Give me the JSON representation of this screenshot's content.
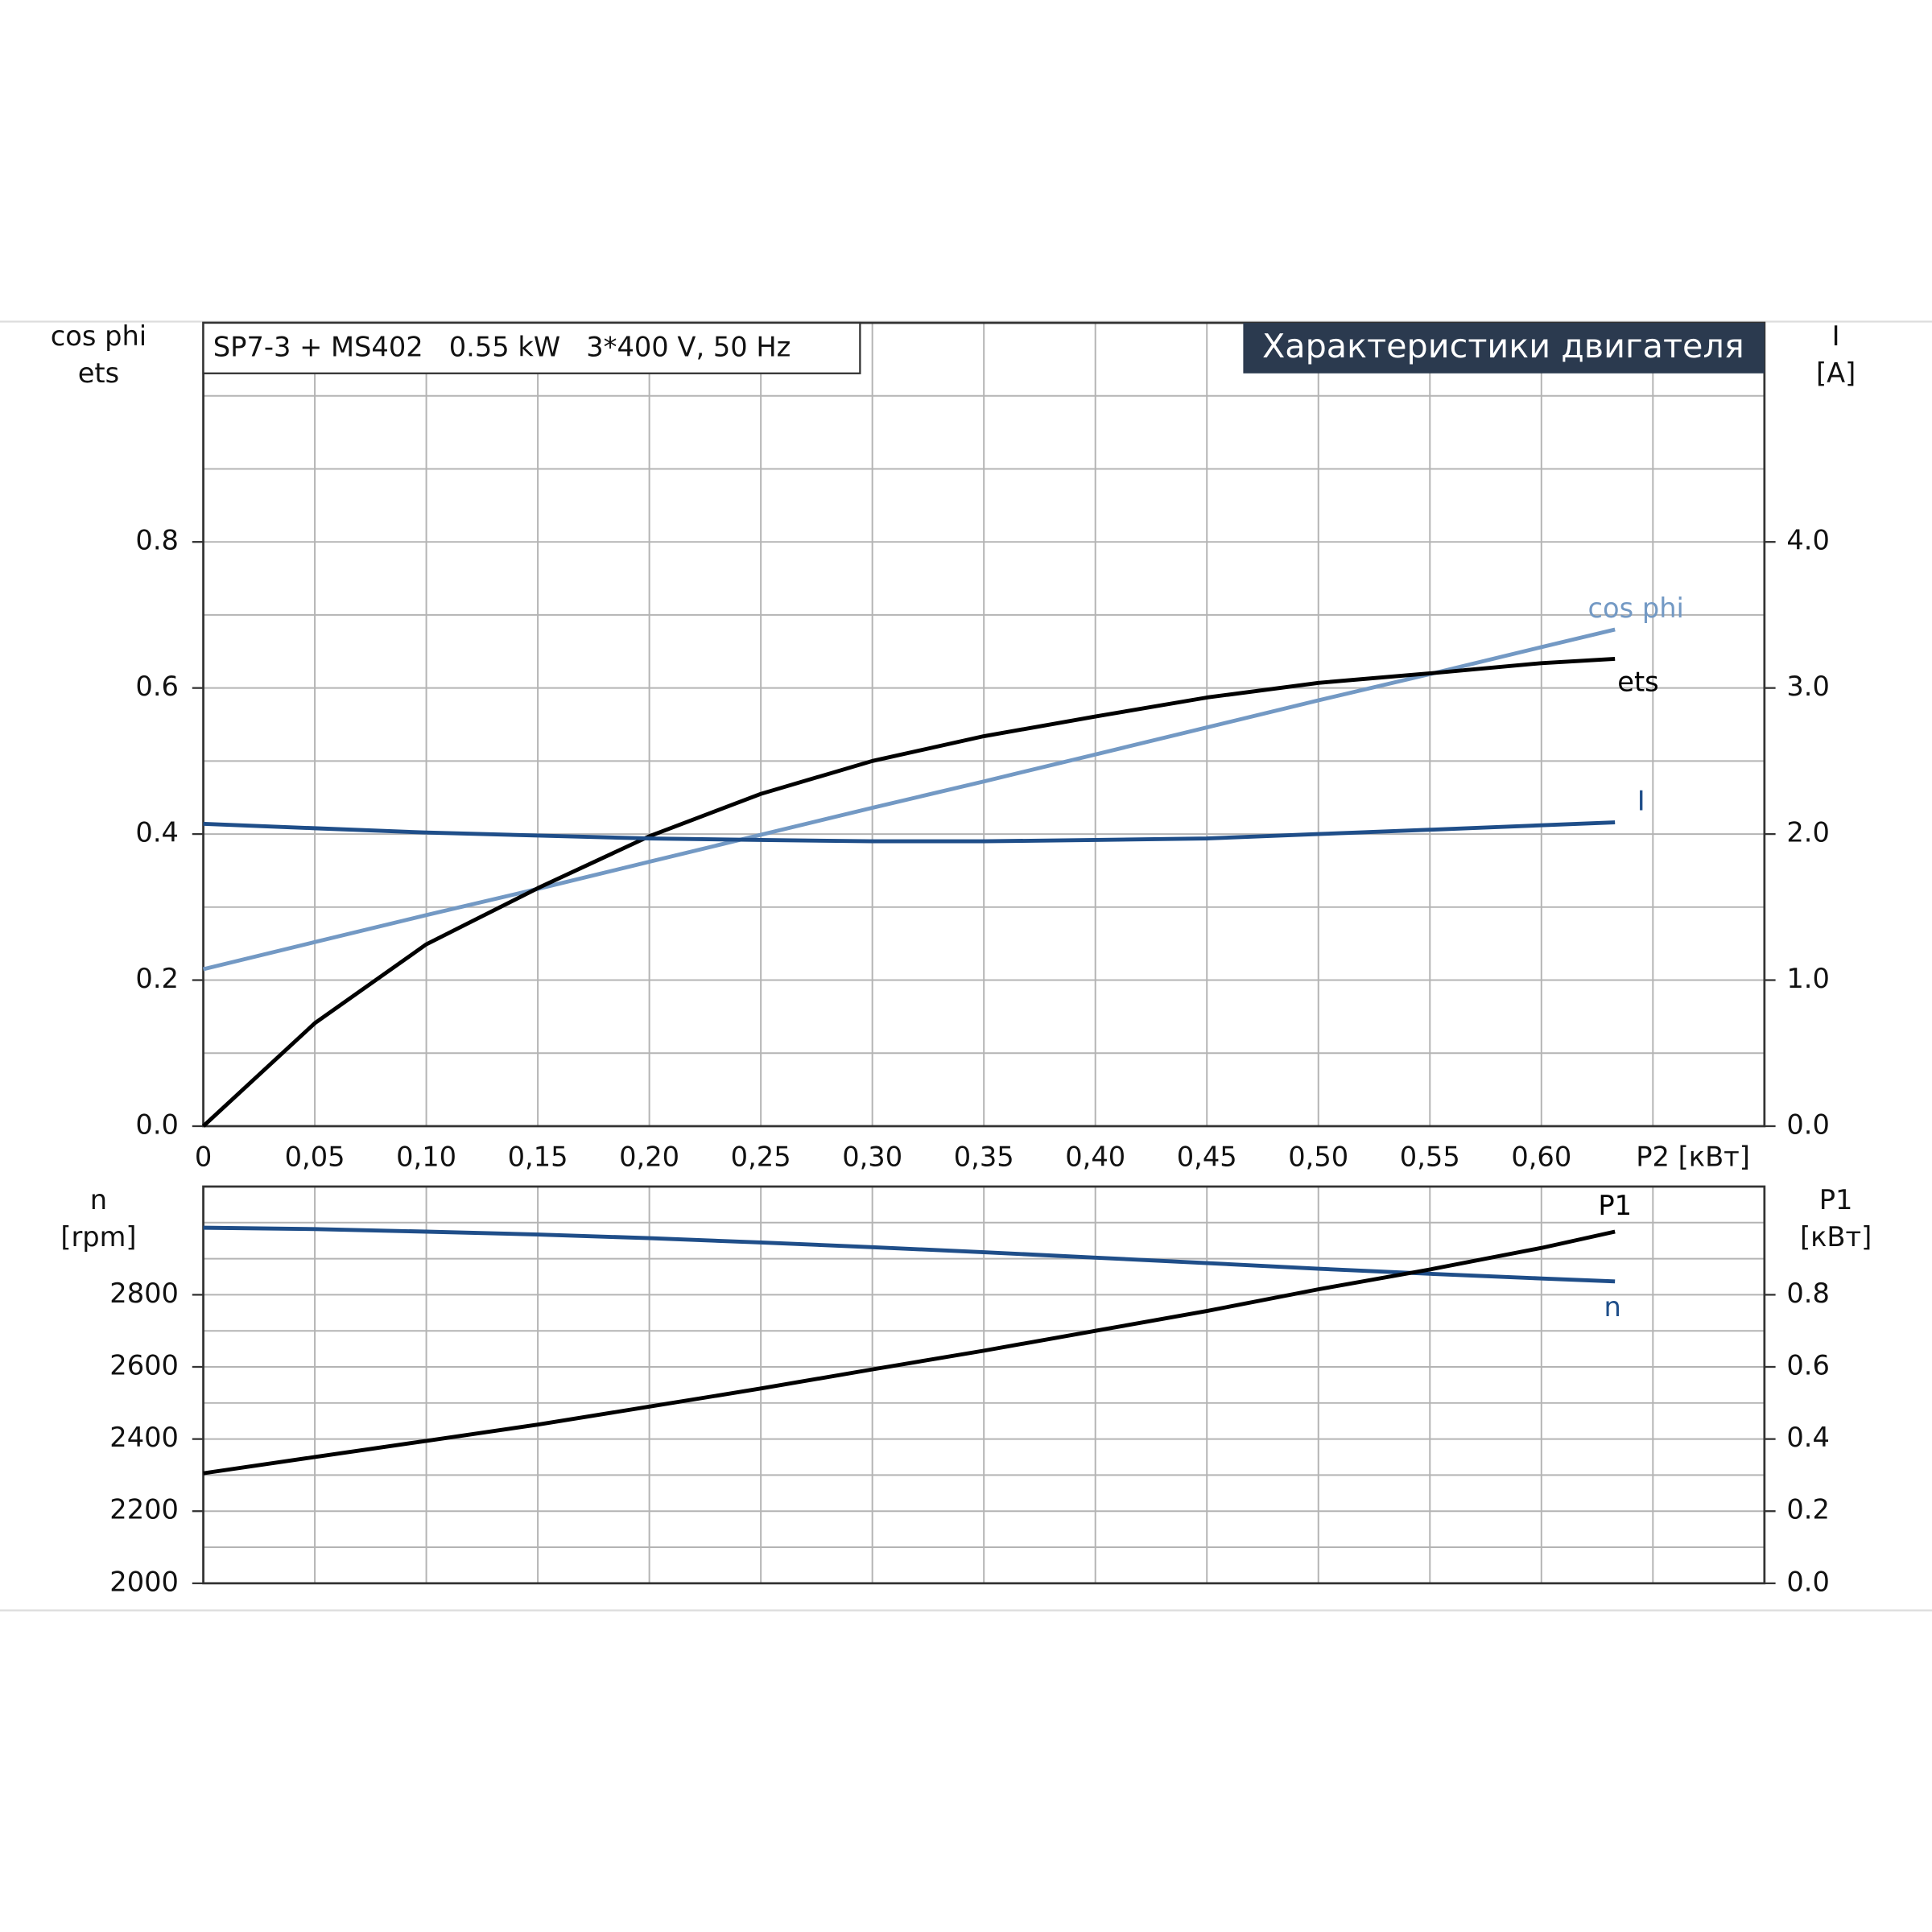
{
  "chart_data": [
    {
      "type": "line",
      "title": "SP7-3 + MS402   0.55 kW   3*400 V, 50 Hz",
      "header": "Характеристики двигателя",
      "xlabel": "P2 [кВт]",
      "ylabel": [
        "cos phi",
        "ets"
      ],
      "y2label": [
        "I",
        "[A]"
      ],
      "x": [
        0,
        0.05,
        0.1,
        0.15,
        0.2,
        0.25,
        0.3,
        0.35,
        0.4,
        0.45,
        0.5,
        0.55,
        0.6,
        0.633
      ],
      "xlim": [
        0,
        0.7
      ],
      "xticks": [
        0,
        {
          "value": 0.05,
          "label": "0,05"
        },
        {
          "value": 0.1,
          "label": "0,10"
        },
        {
          "value": 0.15,
          "label": "0,15"
        },
        {
          "value": 0.2,
          "label": "0,20"
        },
        {
          "value": 0.25,
          "label": "0,25"
        },
        {
          "value": 0.3,
          "label": "0,30"
        },
        {
          "value": 0.35,
          "label": "0,35"
        },
        {
          "value": 0.4,
          "label": "0,40"
        },
        {
          "value": 0.45,
          "label": "0,45"
        },
        {
          "value": 0.5,
          "label": "0,50"
        },
        {
          "value": 0.55,
          "label": "0,55"
        },
        {
          "value": 0.6,
          "label": "0,60"
        }
      ],
      "xgrid": [
        0.65
      ],
      "ylim": [
        0,
        1.1
      ],
      "yticks": [
        {
          "value": 0,
          "label": "0.0"
        },
        0.2,
        0.4,
        0.6,
        0.8
      ],
      "ygrid": [
        0.1,
        0.3,
        0.5,
        0.7,
        0.9,
        1.0
      ],
      "y2lim": [
        0,
        5.5
      ],
      "y2ticks": [
        {
          "value": 0,
          "label": "0.0"
        },
        {
          "value": 1,
          "label": "1.0"
        },
        {
          "value": 2,
          "label": "2.0"
        },
        {
          "value": 3,
          "label": "3.0"
        },
        {
          "value": 4,
          "label": "4.0"
        }
      ],
      "grid": true,
      "series": [
        {
          "name": "cos phi",
          "color": "#7399c4",
          "values": [
            0.215,
            0.252,
            0.289,
            0.325,
            0.362,
            0.399,
            0.436,
            0.472,
            0.509,
            0.546,
            0.583,
            0.619,
            0.656,
            0.68
          ]
        },
        {
          "name": "ets",
          "color": "#000000",
          "values": [
            0,
            0.141,
            0.249,
            0.326,
            0.397,
            0.455,
            0.5,
            0.534,
            0.561,
            0.587,
            0.607,
            0.62,
            0.634,
            0.64
          ]
        },
        {
          "name": "I",
          "color": "#1f4e89",
          "axis": "y2",
          "values": [
            2.07,
            2.04,
            2.01,
            1.99,
            1.97,
            1.96,
            1.95,
            1.95,
            1.96,
            1.97,
            2.0,
            2.03,
            2.06,
            2.08
          ]
        }
      ]
    },
    {
      "type": "line",
      "ylabel": [
        "n",
        "[rpm]"
      ],
      "y2label": [
        "P1",
        "[кВт]"
      ],
      "x": [
        0,
        0.05,
        0.1,
        0.15,
        0.2,
        0.25,
        0.3,
        0.35,
        0.4,
        0.45,
        0.5,
        0.55,
        0.6,
        0.633
      ],
      "xlim": [
        0,
        0.7
      ],
      "xgrid": [
        0.05,
        0.1,
        0.15,
        0.2,
        0.25,
        0.3,
        0.35,
        0.4,
        0.45,
        0.5,
        0.55,
        0.6,
        0.65
      ],
      "ylim": [
        2000,
        3100
      ],
      "yticks": [
        2000,
        2200,
        2400,
        2600,
        2800
      ],
      "ygrid": [
        2100,
        2300,
        2500,
        2700,
        2900,
        3000
      ],
      "y2lim": [
        0,
        1.1
      ],
      "y2ticks": [
        {
          "value": 0,
          "label": "0.0"
        },
        0.2,
        0.4,
        0.6,
        0.8
      ],
      "grid": true,
      "series": [
        {
          "name": "n",
          "color": "#1f4e89",
          "values": [
            2986,
            2982,
            2975,
            2967,
            2957,
            2945,
            2932,
            2918,
            2903,
            2888,
            2872,
            2858,
            2845,
            2837
          ]
        },
        {
          "name": "P1",
          "color": "#000000",
          "axis": "y2",
          "values": [
            0.305,
            0.35,
            0.395,
            0.44,
            0.49,
            0.54,
            0.593,
            0.645,
            0.7,
            0.755,
            0.815,
            0.87,
            0.93,
            0.975
          ]
        }
      ]
    }
  ]
}
